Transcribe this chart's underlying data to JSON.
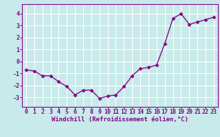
{
  "x": [
    0,
    1,
    2,
    3,
    4,
    5,
    6,
    7,
    8,
    9,
    10,
    11,
    12,
    13,
    14,
    15,
    16,
    17,
    18,
    19,
    20,
    21,
    22,
    23
  ],
  "y": [
    -0.7,
    -0.8,
    -1.2,
    -1.2,
    -1.7,
    -2.1,
    -2.8,
    -2.4,
    -2.4,
    -3.1,
    -2.9,
    -2.8,
    -2.1,
    -1.2,
    -0.6,
    -0.5,
    -0.3,
    1.5,
    3.6,
    4.0,
    3.1,
    3.3,
    3.5,
    3.7
  ],
  "line_color": "#880088",
  "marker": "D",
  "marker_size": 2.5,
  "line_width": 1.0,
  "xlabel": "Windchill (Refroidissement éolien,°C)",
  "xlabel_fontsize": 6.5,
  "ylabel_ticks": [
    -3,
    -2,
    -1,
    0,
    1,
    2,
    3,
    4
  ],
  "xtick_labels": [
    "0",
    "1",
    "2",
    "3",
    "4",
    "5",
    "6",
    "7",
    "8",
    "9",
    "10",
    "11",
    "12",
    "13",
    "14",
    "15",
    "16",
    "17",
    "18",
    "19",
    "20",
    "21",
    "22",
    "23"
  ],
  "xlim": [
    -0.5,
    23.5
  ],
  "ylim": [
    -3.8,
    4.8
  ],
  "bg_color": "#c8eaea",
  "grid_color": "#ffffff",
  "tick_color": "#880088",
  "tick_fontsize": 6,
  "border_color": "#880088"
}
